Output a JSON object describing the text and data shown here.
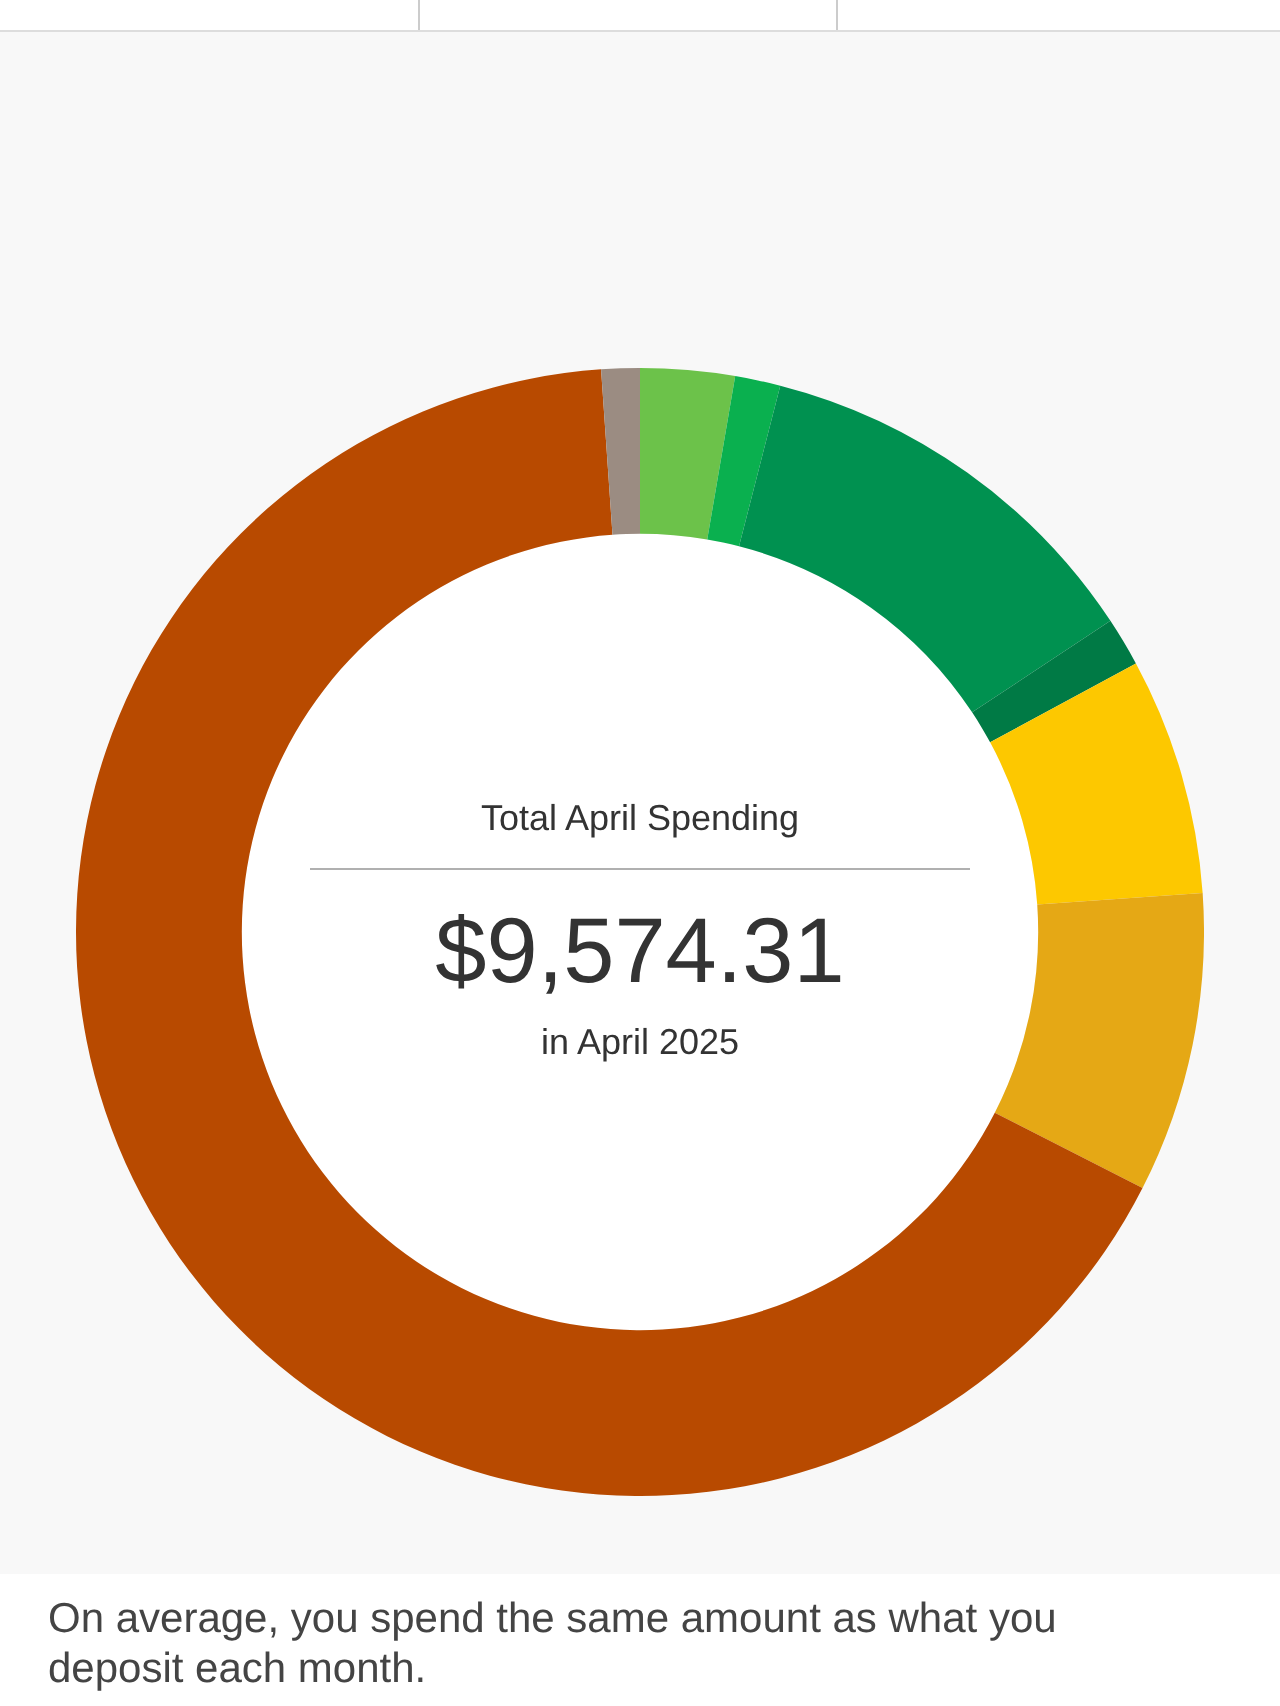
{
  "chart_data": {
    "type": "donut",
    "title": "Total April Spending",
    "categories": [
      null,
      null,
      null,
      null,
      null,
      null,
      null,
      null
    ],
    "values": [
      2.7,
      1.3,
      11.7,
      1.4,
      6.8,
      8.6,
      66.4,
      1.1
    ],
    "colors": [
      "#6cc24a",
      "#0ab04f",
      "#009150",
      "#007a45",
      "#fdc800",
      "#e5a815",
      "#b84a00",
      "#9b8c82"
    ],
    "annotations": [
      "$9,574.31",
      "in April 2025",
      "On average, you spend the same amount as what you deposit each month."
    ]
  }
}
